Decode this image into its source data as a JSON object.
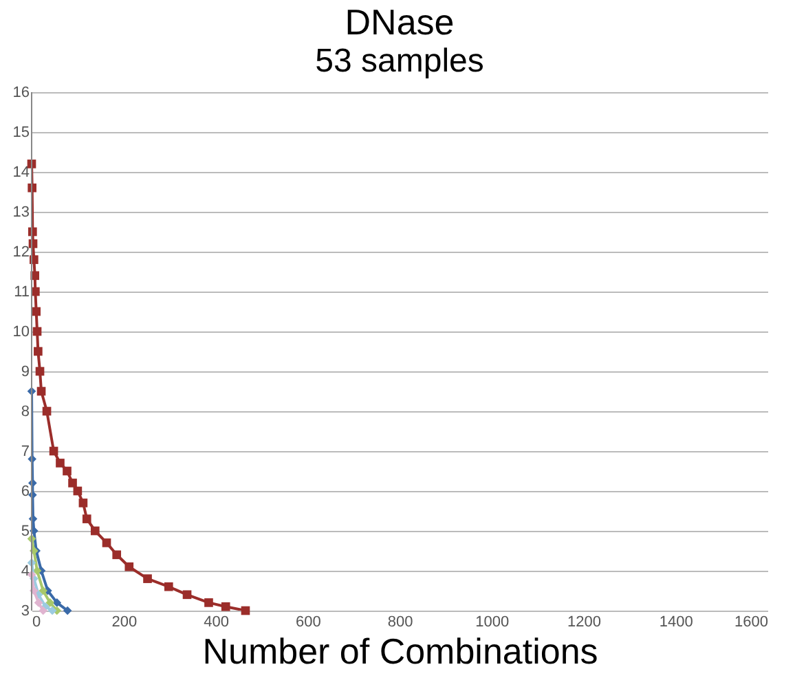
{
  "chart_data": {
    "type": "line",
    "title": "DNase",
    "subtitle": "53 samples",
    "xlabel": "Number of Combinations",
    "xlim": [
      0,
      1600
    ],
    "xticks": [
      0,
      200,
      400,
      600,
      800,
      1000,
      1200,
      1400,
      1600
    ],
    "ylim": [
      3,
      16
    ],
    "yticks": [
      3,
      4,
      5,
      6,
      7,
      8,
      9,
      10,
      11,
      12,
      13,
      14,
      15,
      16
    ],
    "grid": "y",
    "series": [
      {
        "color": "#9b2d2a",
        "marker": "square",
        "x": [
          0,
          1,
          2,
          3,
          5,
          7,
          8,
          10,
          12,
          14,
          18,
          21,
          33,
          48,
          62,
          77,
          89,
          100,
          112,
          120,
          138,
          163,
          185,
          212,
          252,
          298,
          338,
          385,
          422,
          465
        ],
        "values": [
          14.2,
          13.6,
          12.5,
          12.2,
          11.8,
          11.4,
          11,
          10.5,
          10,
          9.5,
          9,
          8.5,
          8,
          7,
          6.7,
          6.5,
          6.2,
          6,
          5.7,
          5.3,
          5,
          4.7,
          4.4,
          4.1,
          3.8,
          3.6,
          3.4,
          3.2,
          3.1,
          3.0
        ]
      },
      {
        "color": "#3a6aa8",
        "marker": "diamond",
        "x": [
          0,
          1,
          2,
          2,
          3,
          5,
          10,
          21,
          35,
          55,
          78
        ],
        "values": [
          8.5,
          6.8,
          6.2,
          5.9,
          5.3,
          5,
          4.5,
          4,
          3.5,
          3.2,
          3.0
        ]
      },
      {
        "color": "#a8c86a",
        "marker": "diamond",
        "x": [
          0,
          5,
          12,
          25,
          40,
          55
        ],
        "values": [
          4.8,
          4.5,
          4,
          3.5,
          3.2,
          3.0
        ]
      },
      {
        "color": "#9ccbe0",
        "marker": "diamond",
        "x": [
          0,
          5,
          15,
          30,
          45
        ],
        "values": [
          4.2,
          3.8,
          3.4,
          3.1,
          3.0
        ]
      },
      {
        "color": "#e0b4d0",
        "marker": "diamond",
        "x": [
          0,
          5,
          15,
          25
        ],
        "values": [
          3.9,
          3.5,
          3.2,
          3.0
        ]
      }
    ]
  }
}
